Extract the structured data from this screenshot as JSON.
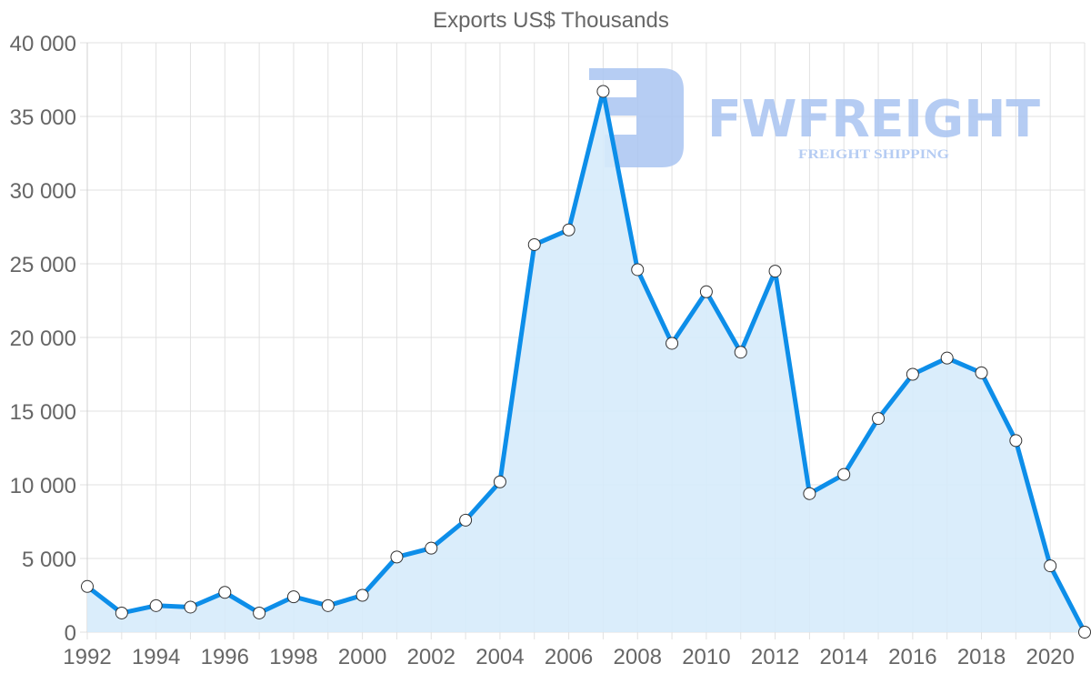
{
  "chart_data": {
    "type": "area",
    "title": "Exports US$ Thousands",
    "xlabel": "",
    "ylabel": "",
    "x": [
      1992,
      1993,
      1994,
      1995,
      1996,
      1997,
      1998,
      1999,
      2000,
      2001,
      2002,
      2003,
      2004,
      2005,
      2006,
      2007,
      2008,
      2009,
      2010,
      2011,
      2012,
      2013,
      2014,
      2015,
      2016,
      2017,
      2018,
      2019,
      2020,
      2021
    ],
    "series": [
      {
        "name": "Exports US$ Thousands",
        "values": [
          3100,
          1300,
          1800,
          1700,
          2700,
          1300,
          2400,
          1800,
          2500,
          5100,
          5700,
          7600,
          10200,
          26300,
          27300,
          36700,
          24600,
          19600,
          23100,
          19000,
          24500,
          9400,
          10700,
          14500,
          17500,
          18600,
          17600,
          13000,
          4500,
          0
        ]
      }
    ],
    "ylim": [
      0,
      40000
    ],
    "yticks": [
      0,
      5000,
      10000,
      15000,
      20000,
      25000,
      30000,
      35000,
      40000
    ],
    "ytick_labels": [
      "0",
      "5 000",
      "10 000",
      "15 000",
      "20 000",
      "25 000",
      "30 000",
      "35 000",
      "40 000"
    ],
    "xtick_labels": [
      "1992",
      "1994",
      "1996",
      "1998",
      "2000",
      "2002",
      "2004",
      "2006",
      "2008",
      "2010",
      "2012",
      "2014",
      "2016",
      "2018",
      "2020"
    ],
    "grid": true,
    "legend": "none",
    "colors": {
      "line": "#0d8ee9",
      "fill": "#d6ebfb",
      "point_fill": "#ffffff",
      "point_stroke": "#333333",
      "grid": "#e1e1e1",
      "text": "#666666"
    }
  },
  "watermark": {
    "brand": "FWFREIGHT",
    "tagline": "FREIGHT SHIPPING",
    "color": "#a9c4f1"
  }
}
